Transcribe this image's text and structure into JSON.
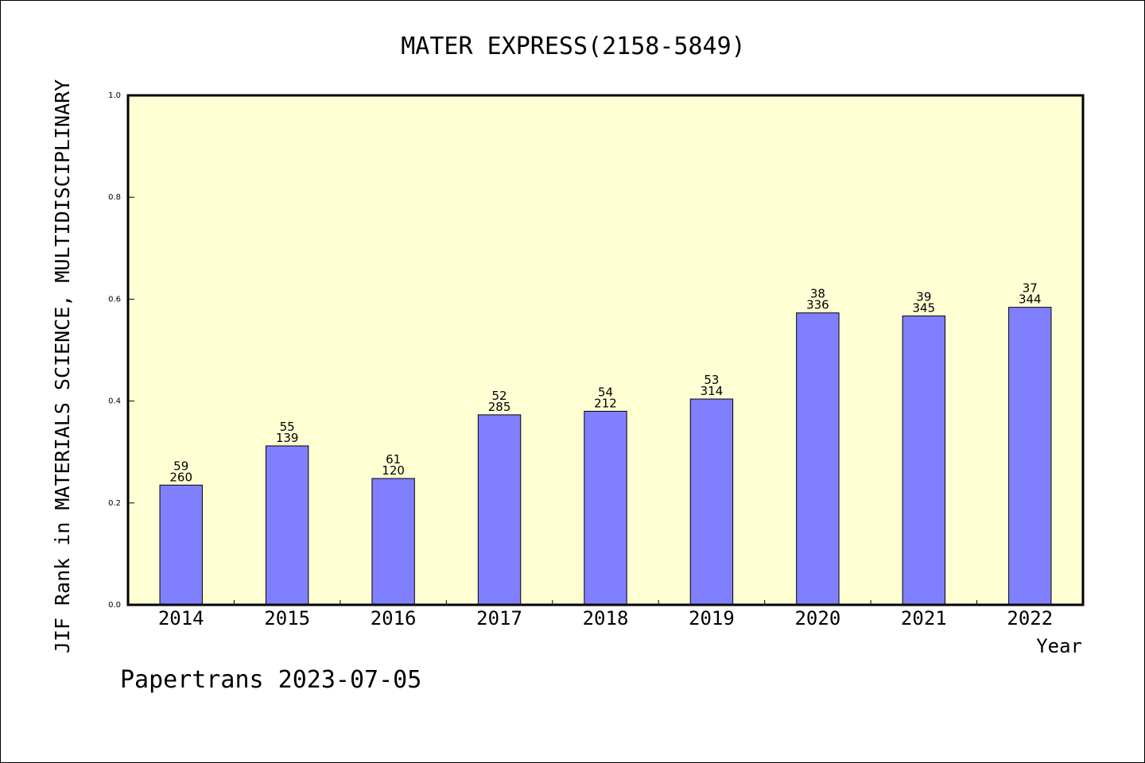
{
  "chart_data": {
    "type": "bar",
    "title": "MATER EXPRESS(2158-5849)",
    "xlabel": "Year",
    "ylabel": "JIF Rank in MATERIALS SCIENCE, MULTIDISCIPLINARY",
    "ylim": [
      0,
      1.0
    ],
    "yticks": [
      "0.0",
      "0.2",
      "0.4",
      "0.6",
      "0.8",
      "1.0"
    ],
    "grid": false,
    "categories": [
      "2014",
      "2015",
      "2016",
      "2017",
      "2018",
      "2019",
      "2020",
      "2021",
      "2022"
    ],
    "values": [
      0.235,
      0.312,
      0.248,
      0.373,
      0.38,
      0.404,
      0.573,
      0.567,
      0.584
    ],
    "rank_labels": [
      "59",
      "55",
      "61",
      "52",
      "54",
      "53",
      "38",
      "39",
      "37"
    ],
    "total_labels": [
      "260",
      "139",
      "120",
      "285",
      "212",
      "314",
      "336",
      "345",
      "344"
    ]
  },
  "footer": "Papertrans 2023-07-05",
  "colors": {
    "plot_background": "#ffffd4",
    "bar_fill": "#8080ff",
    "axis": "#000000"
  }
}
